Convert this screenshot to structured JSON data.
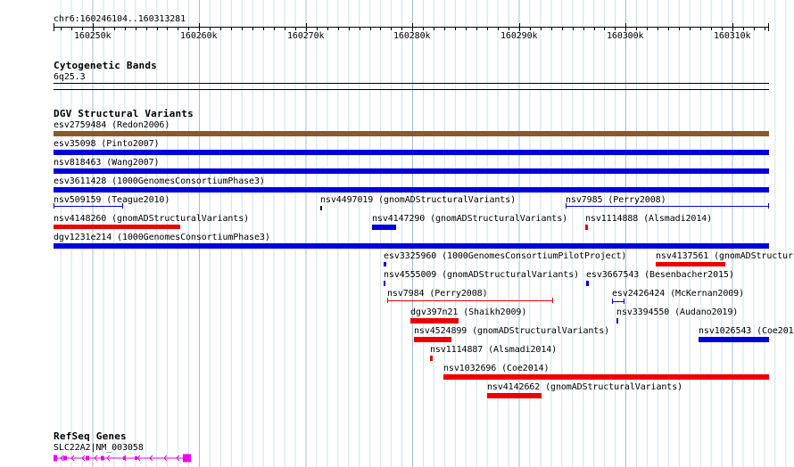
{
  "ruler": {
    "location": "chr6:160246104..160313281",
    "ticks": [
      "160250k",
      "160260k",
      "160270k",
      "160280k",
      "160290k",
      "160300k",
      "160310k"
    ]
  },
  "cytoband": {
    "title": "Cytogenetic Bands",
    "band": "6q25.3"
  },
  "dgv": {
    "title": "DGV Structural Variants",
    "features": [
      {
        "label": "esv2759484 (Redon2006)",
        "color": "#8b5a2b"
      },
      {
        "label": "esv35098 (Pinto2007)",
        "color": "#0000dd"
      },
      {
        "label": "nsv818463 (Wang2007)",
        "color": "#0000dd"
      },
      {
        "label": "esv3611428 (1000GenomesConsortiumPhase3)",
        "color": "#0000dd"
      },
      {
        "label": "nsv509159 (Teague2010)",
        "color": "#0000dd"
      },
      {
        "label": "nsv4497019 (gnomADStructuralVariants)",
        "color": "#000000"
      },
      {
        "label": "nsv7985 (Perry2008)",
        "color": "#0000dd"
      },
      {
        "label": "nsv4148260 (gnomADStructuralVariants)",
        "color": "#ee0000"
      },
      {
        "label": "nsv4147290 (gnomADStructuralVariants)",
        "color": "#0000dd"
      },
      {
        "label": "nsv1114888 (Alsmadi2014)",
        "color": "#ee0000"
      },
      {
        "label": "dgv1231e214 (1000GenomesConsortiumPhase3)",
        "color": "#0000dd"
      },
      {
        "label": "esv3325960 (1000GenomesConsortiumPilotProject)",
        "color": "#0000dd"
      },
      {
        "label": "nsv4137561 (gnomADStructur",
        "color": "#ee0000"
      },
      {
        "label": "nsv4555009 (gnomADStructuralVariants)",
        "color": "#0000dd"
      },
      {
        "label": "esv3667543 (Besenbacher2015)",
        "color": "#0000dd"
      },
      {
        "label": "nsv7984 (Perry2008)",
        "color": "#ee0000"
      },
      {
        "label": "esv2426424 (McKernan2009)",
        "color": "#0000dd"
      },
      {
        "label": "dgv397n21 (Shaikh2009)",
        "color": "#ee0000"
      },
      {
        "label": "nsv3394550 (Audano2019)",
        "color": "#0000dd"
      },
      {
        "label": "nsv4524899 (gnomADStructuralVariants)",
        "color": "#ee0000"
      },
      {
        "label": "nsv1026543 (Coe201",
        "color": "#0000dd"
      },
      {
        "label": "nsv1114887 (Alsmadi2014)",
        "color": "#ee0000"
      },
      {
        "label": "nsv1032696 (Coe2014)",
        "color": "#ee0000"
      },
      {
        "label": "nsv4142662 (gnomADStructuralVariants)",
        "color": "#ee0000"
      }
    ]
  },
  "refseq": {
    "title": "RefSeq Genes",
    "gene": "SLC22A2|NM_003058",
    "color": "#ee00ee"
  }
}
